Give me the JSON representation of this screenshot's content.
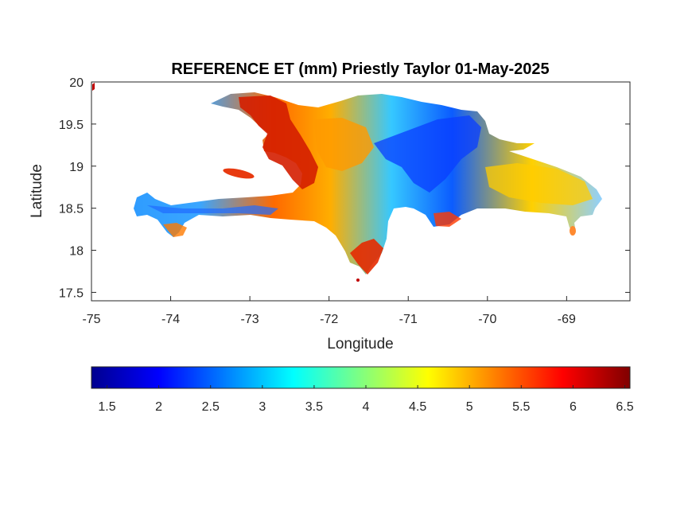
{
  "title": "REFERENCE ET (mm) Priestly Taylor 01-May-2025",
  "map": {
    "xlabel": "Longitude",
    "ylabel": "Latitude",
    "xlim": [
      -75,
      -68.2
    ],
    "ylim": [
      17.4,
      20
    ],
    "x_ticks": [
      "-75",
      "-74",
      "-73",
      "-72",
      "-71",
      "-70",
      "-69"
    ],
    "y_ticks": [
      "20",
      "19.5",
      "19",
      "18.5",
      "18",
      "17.5"
    ],
    "region": "Hispaniola (Haiti and Dominican Republic)",
    "grid": false
  },
  "colorbar": {
    "orientation": "horizontal",
    "colormap": "jet",
    "range": [
      1.35,
      6.55
    ],
    "ticks": [
      "1.5",
      "2",
      "2.5",
      "3",
      "3.5",
      "4",
      "4.5",
      "5",
      "5.5",
      "6",
      "6.5"
    ]
  },
  "colors": {
    "jet": [
      "#00008f",
      "#0000ff",
      "#0080ff",
      "#00ffff",
      "#80ff80",
      "#ffff00",
      "#ff8000",
      "#ff0000",
      "#800000"
    ]
  }
}
